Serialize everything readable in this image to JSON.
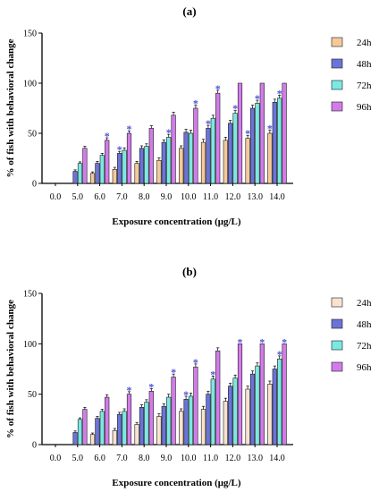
{
  "colors": {
    "24h": "#f5c99a",
    "48h": "#6b74d6",
    "72h": "#7ce8e3",
    "96h": "#d27cea",
    "star": "#4f52d9"
  },
  "chart_data": [
    {
      "type": "bar",
      "panel_label": "(a)",
      "xlabel": "Exposure concentration (μg/L)",
      "ylabel": "% of fish with behavioral change",
      "ylim": [
        0,
        150
      ],
      "yticks": [
        "0",
        "50",
        "100",
        "150"
      ],
      "categories": [
        "0.0",
        "5.0",
        "6.0",
        "7.0",
        "8.0",
        "9.0",
        "10.0",
        "11.0",
        "12.0",
        "13.0",
        "14.0"
      ],
      "legend_position": "right",
      "series": [
        {
          "name": "24h",
          "color": "#f5c99a",
          "values": [
            0,
            0,
            10,
            14,
            20,
            23,
            35,
            41,
            43,
            45,
            50
          ],
          "errors": [
            0,
            0,
            1.5,
            2,
            2,
            2.5,
            2.5,
            3,
            3,
            3,
            3
          ],
          "significant": [
            false,
            false,
            false,
            false,
            false,
            false,
            false,
            false,
            false,
            true,
            true
          ]
        },
        {
          "name": "48h",
          "color": "#6b74d6",
          "values": [
            0,
            12,
            20,
            30,
            35,
            41,
            51,
            55,
            60,
            75,
            81
          ],
          "errors": [
            0,
            1.5,
            2,
            2,
            2.5,
            2.5,
            3,
            3,
            3,
            3,
            3
          ],
          "significant": [
            false,
            false,
            false,
            true,
            false,
            false,
            false,
            true,
            false,
            false,
            false
          ]
        },
        {
          "name": "72h",
          "color": "#7ce8e3",
          "values": [
            0,
            20,
            28,
            33,
            37,
            46,
            50,
            65,
            70,
            80,
            85
          ],
          "errors": [
            0,
            1.5,
            2,
            2.5,
            2.5,
            3,
            3,
            3,
            3,
            3,
            3
          ],
          "significant": [
            false,
            false,
            false,
            false,
            false,
            true,
            false,
            false,
            true,
            true,
            true
          ]
        },
        {
          "name": "96h",
          "color": "#d27cea",
          "values": [
            0,
            35,
            43,
            50,
            55,
            68,
            75,
            90,
            100,
            100,
            100
          ],
          "errors": [
            0,
            2,
            2.5,
            2.5,
            2.5,
            3,
            3,
            3,
            0,
            0,
            0
          ],
          "significant": [
            false,
            false,
            true,
            true,
            false,
            false,
            true,
            true,
            false,
            false,
            false
          ]
        }
      ]
    },
    {
      "type": "bar",
      "panel_label": "(b)",
      "xlabel": "Exposure concentration (μg/L)",
      "ylabel": "% of fish with behavioral change",
      "ylim": [
        0,
        150
      ],
      "yticks": [
        "0",
        "50",
        "100",
        "150"
      ],
      "categories": [
        "0.0",
        "5.0",
        "6.0",
        "7.0",
        "8.0",
        "9.0",
        "10.0",
        "11.0",
        "12.0",
        "13.0",
        "14.0"
      ],
      "legend_position": "right",
      "series": [
        {
          "name": "24h",
          "color": "#f9e3cf",
          "values": [
            0,
            0,
            10,
            14,
            20,
            28,
            33,
            35,
            43,
            55,
            60
          ],
          "errors": [
            0,
            0,
            1.5,
            2,
            2,
            2.5,
            2.5,
            3,
            3,
            3,
            3
          ],
          "significant": [
            false,
            false,
            false,
            false,
            false,
            false,
            false,
            false,
            false,
            false,
            false
          ]
        },
        {
          "name": "48h",
          "color": "#6b74d6",
          "values": [
            0,
            12,
            26,
            30,
            37,
            38,
            45,
            50,
            58,
            70,
            75
          ],
          "errors": [
            0,
            1.5,
            2,
            2,
            2.5,
            2.5,
            3,
            3,
            3,
            3,
            3
          ],
          "significant": [
            false,
            false,
            false,
            false,
            false,
            false,
            true,
            false,
            false,
            false,
            false
          ]
        },
        {
          "name": "72h",
          "color": "#7ce8e3",
          "values": [
            0,
            25,
            33,
            33,
            42,
            47,
            48,
            65,
            66,
            78,
            85
          ],
          "errors": [
            0,
            1.5,
            2,
            2.5,
            2.5,
            3,
            3,
            3,
            3,
            3,
            3
          ],
          "significant": [
            false,
            false,
            false,
            false,
            false,
            false,
            false,
            true,
            false,
            false,
            true
          ]
        },
        {
          "name": "96h",
          "color": "#d27cea",
          "values": [
            0,
            35,
            47,
            50,
            53,
            67,
            77,
            93,
            100,
            100,
            100
          ],
          "errors": [
            0,
            2,
            2.5,
            2.5,
            2.5,
            3,
            3,
            3,
            0,
            0,
            0
          ],
          "significant": [
            false,
            false,
            false,
            true,
            true,
            true,
            true,
            false,
            true,
            true,
            true
          ]
        }
      ]
    }
  ]
}
